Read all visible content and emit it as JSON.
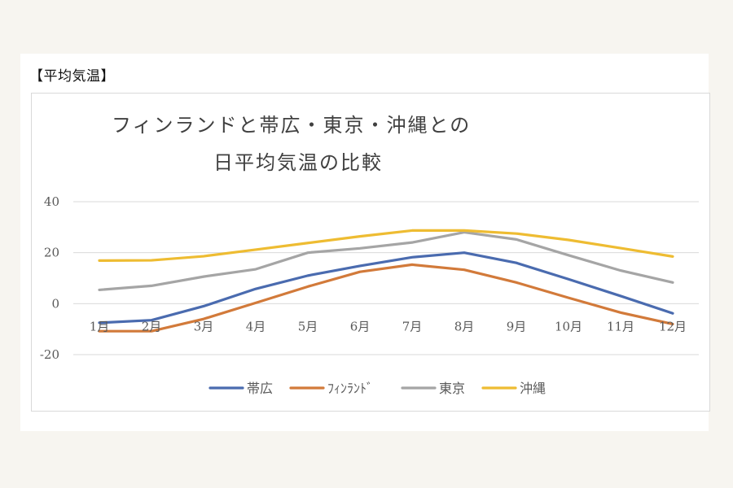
{
  "heading": "【平均気温】",
  "chart_data": {
    "type": "line",
    "title_lines": [
      "フィンランドと帯広・東京・沖縄との",
      "日平均気温の比較"
    ],
    "categories": [
      "1月",
      "2月",
      "3月",
      "4月",
      "5月",
      "6月",
      "7月",
      "8月",
      "9月",
      "10月",
      "11月",
      "12月"
    ],
    "ylim": [
      -20,
      40
    ],
    "yticks": [
      -20,
      0,
      20,
      40
    ],
    "grid": true,
    "legend": "bottom",
    "series": [
      {
        "name": "帯広",
        "color": "#4a6baf",
        "values": [
          -7.5,
          -6.5,
          -1,
          5.8,
          11,
          14.8,
          18.2,
          20,
          16,
          9.6,
          3,
          -3.8
        ]
      },
      {
        "name": "ﾌｨﾝﾗﾝﾄﾞ",
        "color": "#d27a3a",
        "values": [
          -10.8,
          -10.8,
          -6,
          0.3,
          6.7,
          12.5,
          15.3,
          13.3,
          8.3,
          2.3,
          -3.5,
          -8
        ]
      },
      {
        "name": "東京",
        "color": "#a5a5a5",
        "values": [
          5.4,
          7,
          10.6,
          13.5,
          20,
          21.7,
          24,
          28,
          25.2,
          19,
          13,
          8.3
        ]
      },
      {
        "name": "沖縄",
        "color": "#eebc32",
        "values": [
          16.9,
          17,
          18.6,
          21.2,
          23.8,
          26.4,
          28.7,
          28.7,
          27.5,
          25,
          21.8,
          18.5
        ]
      }
    ]
  }
}
